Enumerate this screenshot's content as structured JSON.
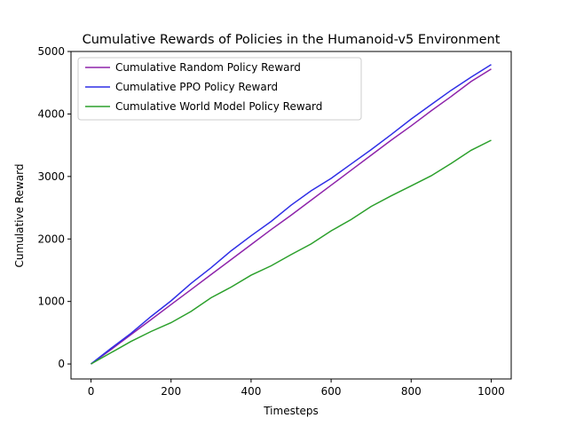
{
  "chart_data": {
    "type": "line",
    "title": "Cumulative Rewards of Policies in the Humanoid-v5 Environment",
    "xlabel": "Timesteps",
    "ylabel": "Cumulative Reward",
    "xlim": [
      -50,
      1050
    ],
    "ylim": [
      -240,
      5000
    ],
    "xticks": [
      0,
      200,
      400,
      600,
      800,
      1000
    ],
    "yticks": [
      0,
      1000,
      2000,
      3000,
      4000,
      5000
    ],
    "grid": false,
    "legend_position": "top-left",
    "series": [
      {
        "name": "Cumulative Random Policy Reward",
        "color": "#8e24aa",
        "x": [
          0,
          50,
          100,
          150,
          200,
          250,
          300,
          350,
          400,
          450,
          500,
          550,
          600,
          650,
          700,
          750,
          800,
          850,
          900,
          950,
          1000
        ],
        "y": [
          0,
          230,
          470,
          710,
          950,
          1190,
          1430,
          1670,
          1910,
          2150,
          2380,
          2620,
          2860,
          3100,
          3340,
          3580,
          3810,
          4050,
          4280,
          4520,
          4720
        ]
      },
      {
        "name": "Cumulative PPO Policy Reward",
        "color": "#2f2fe6",
        "x": [
          0,
          50,
          100,
          150,
          200,
          250,
          300,
          350,
          400,
          450,
          500,
          550,
          600,
          650,
          700,
          750,
          800,
          850,
          900,
          950,
          1000
        ],
        "y": [
          0,
          250,
          490,
          760,
          1010,
          1290,
          1540,
          1810,
          2050,
          2280,
          2540,
          2770,
          2970,
          3200,
          3430,
          3670,
          3920,
          4150,
          4380,
          4590,
          4790
        ]
      },
      {
        "name": "Cumulative World Model Policy Reward",
        "color": "#2ca02c",
        "x": [
          0,
          50,
          100,
          150,
          200,
          250,
          300,
          350,
          400,
          450,
          500,
          550,
          600,
          650,
          700,
          750,
          800,
          850,
          900,
          950,
          1000
        ],
        "y": [
          0,
          180,
          360,
          520,
          660,
          840,
          1060,
          1230,
          1420,
          1570,
          1750,
          1920,
          2130,
          2310,
          2520,
          2690,
          2850,
          3010,
          3210,
          3420,
          3580
        ]
      }
    ]
  }
}
